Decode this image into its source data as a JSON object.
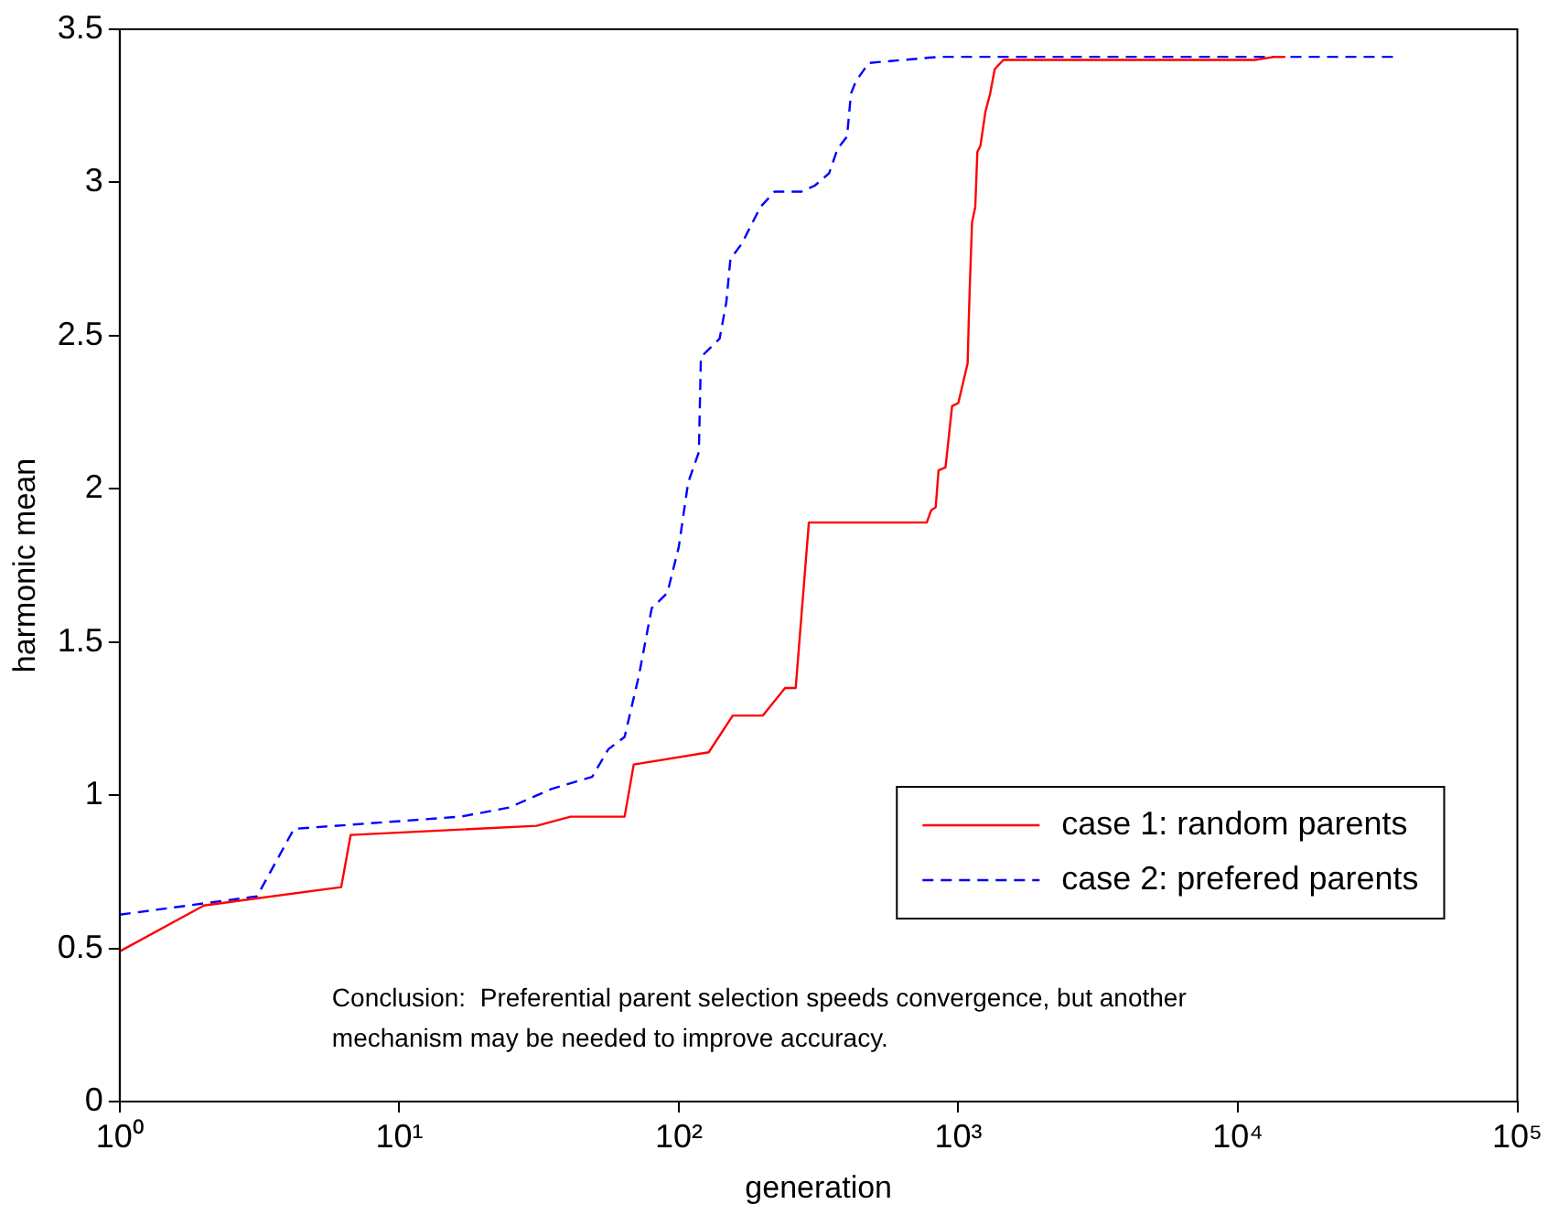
{
  "chart_data": {
    "type": "line",
    "xlabel": "generation",
    "ylabel": "harmonic mean",
    "log": "x",
    "xlim": [
      1,
      100000
    ],
    "xticks": [
      {
        "value": 1,
        "label": "10⁰"
      },
      {
        "value": 10,
        "label": "10¹"
      },
      {
        "value": 100,
        "label": "10²"
      },
      {
        "value": 1000,
        "label": "10³"
      },
      {
        "value": 10000,
        "label": "10⁴"
      },
      {
        "value": 100000,
        "label": "10⁵"
      }
    ],
    "ylim": [
      0,
      3.5
    ],
    "yticks": [
      0,
      0.5,
      1,
      1.5,
      2,
      2.5,
      3,
      3.5
    ],
    "grid": false,
    "legend": "bottom right",
    "marker": "none",
    "series": [
      {
        "name": "case 1: random parents",
        "color": "#ff0000",
        "line_style": "solid",
        "x": [
          1,
          2,
          6.2,
          6.7,
          31,
          41,
          64,
          69,
          128,
          156,
          200,
          240,
          262,
          292,
          771,
          800,
          830,
          850,
          900,
          950,
          1000,
          1080,
          1090,
          1100,
          1120,
          1150,
          1170,
          1200,
          1250,
          1300,
          1350,
          1450,
          1630,
          11500,
          13500,
          14800
        ],
        "values": [
          0.49,
          0.64,
          0.7,
          0.87,
          0.9,
          0.93,
          0.93,
          1.1,
          1.14,
          1.26,
          1.26,
          1.35,
          1.35,
          1.89,
          1.89,
          1.93,
          1.94,
          2.06,
          2.07,
          2.27,
          2.28,
          2.41,
          2.55,
          2.67,
          2.87,
          2.92,
          3.1,
          3.12,
          3.23,
          3.29,
          3.37,
          3.4,
          3.4,
          3.4,
          3.41,
          3.41
        ]
      },
      {
        "name": "case 2: prefered parents",
        "color": "#0000ff",
        "line_style": "dashed",
        "x": [
          1,
          3.1,
          4.2,
          16.6,
          24.8,
          35,
          49,
          56,
          64,
          72,
          80,
          91,
          100,
          108,
          118,
          120,
          140,
          148,
          153,
          168,
          196,
          220,
          275,
          307,
          345,
          370,
          400,
          413,
          430,
          478,
          850,
          36600
        ],
        "values": [
          0.61,
          0.67,
          0.89,
          0.93,
          0.96,
          1.02,
          1.06,
          1.15,
          1.19,
          1.39,
          1.61,
          1.66,
          1.81,
          2.02,
          2.12,
          2.43,
          2.49,
          2.61,
          2.75,
          2.8,
          2.92,
          2.97,
          2.97,
          2.99,
          3.03,
          3.11,
          3.15,
          3.29,
          3.33,
          3.39,
          3.41,
          3.41
        ]
      }
    ],
    "annotations": [
      "Conclusion:  Preferential parent selection speeds convergence, but another mechanism may be needed to improve accuracy."
    ]
  }
}
